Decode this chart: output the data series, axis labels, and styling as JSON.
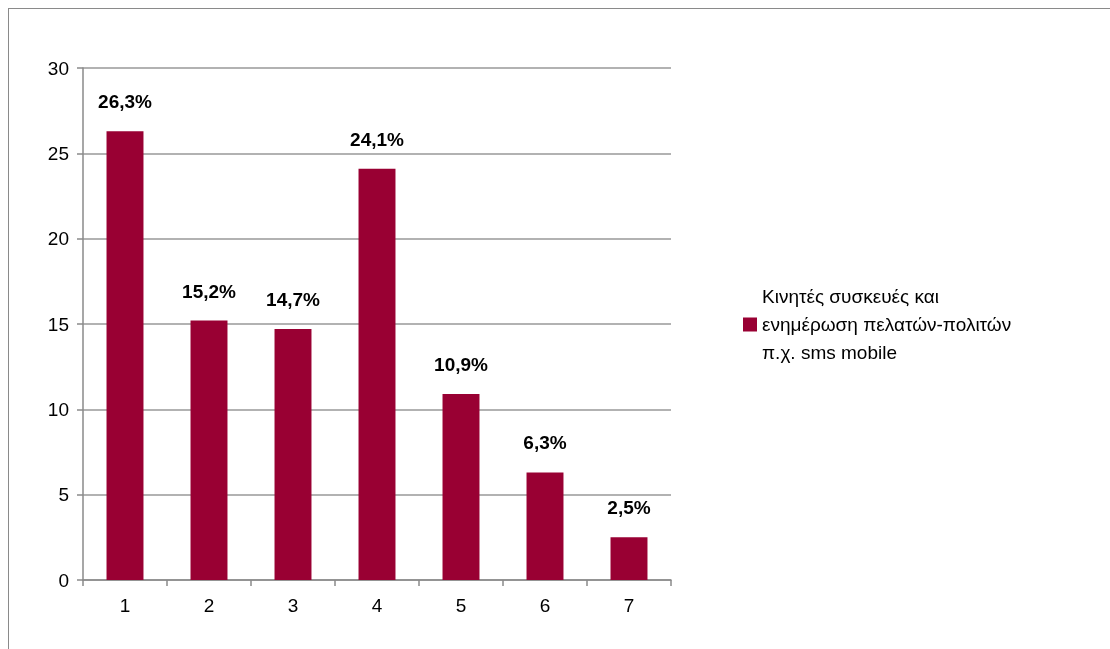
{
  "chart_data": {
    "type": "bar",
    "categories": [
      "1",
      "2",
      "3",
      "4",
      "5",
      "6",
      "7"
    ],
    "series": [
      {
        "name": "Κινητές συσκευές και ενημέρωση πελατών-πολιτών π.χ. sms mobile",
        "color": "#990033",
        "values": [
          26.3,
          15.2,
          14.7,
          24.1,
          10.9,
          6.3,
          2.5
        ],
        "value_labels": [
          "26,3%",
          "15,2%",
          "14,7%",
          "24,1%",
          "10,9%",
          "6,3%",
          "2,5%"
        ]
      }
    ],
    "ylim": [
      0,
      30
    ],
    "yticks": [
      0,
      5,
      10,
      15,
      20,
      25,
      30
    ],
    "grid": "y",
    "legend": "right"
  }
}
